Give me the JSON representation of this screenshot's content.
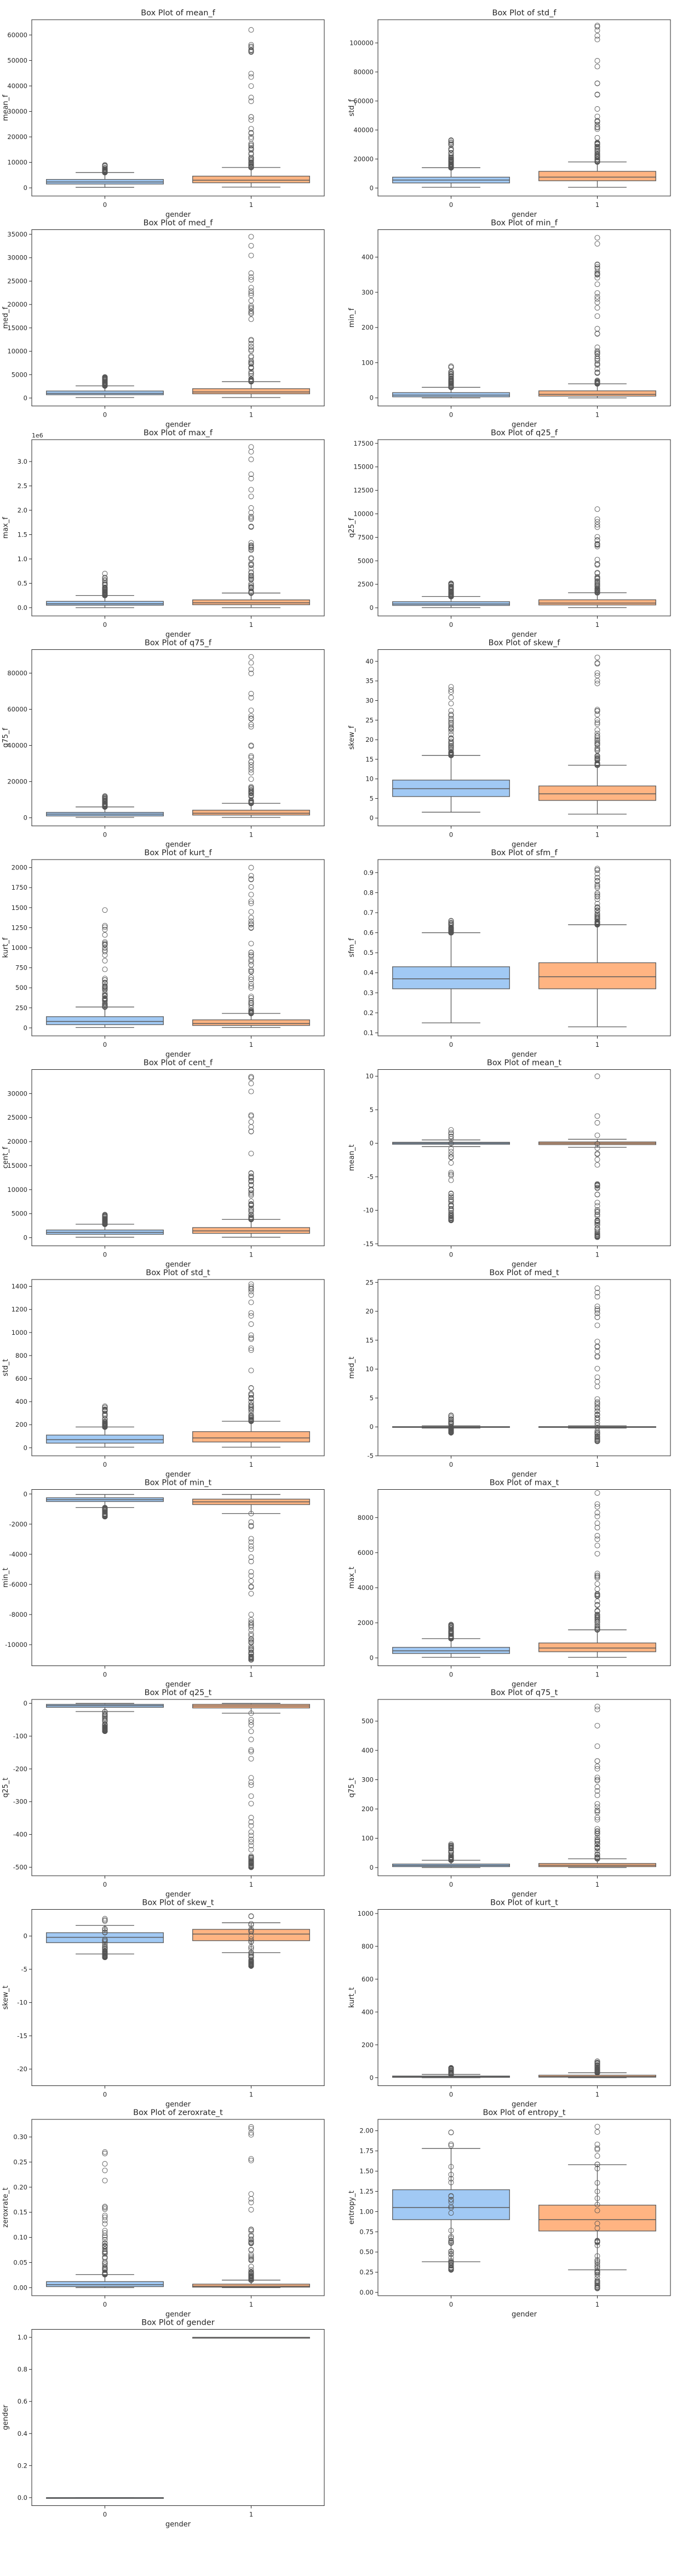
{
  "figure_title": "",
  "chart_data": [
    {
      "type": "box",
      "title": "Box Plot of mean_f",
      "xlabel": "gender",
      "ylabel": "mean_f",
      "ylim": [
        -3200,
        66000
      ],
      "yticks": [
        0,
        10000,
        20000,
        30000,
        40000,
        50000,
        60000
      ],
      "categories": [
        "0",
        "1"
      ],
      "boxes": [
        {
          "q1": 1500,
          "median": 2300,
          "q3": 3300,
          "whisker_low": 200,
          "whisker_high": 6000,
          "outlier_range": [
            6000,
            9000
          ]
        },
        {
          "q1": 2000,
          "median": 3000,
          "q3": 4600,
          "whisker_low": 300,
          "whisker_high": 8000,
          "outlier_range": [
            8000,
            62000
          ]
        }
      ]
    },
    {
      "type": "box",
      "title": "Box Plot of std_f",
      "xlabel": "gender",
      "ylabel": "std_f",
      "ylim": [
        -5500,
        116000
      ],
      "yticks": [
        0,
        20000,
        40000,
        60000,
        80000,
        100000
      ],
      "categories": [
        "0",
        "1"
      ],
      "boxes": [
        {
          "q1": 3500,
          "median": 5500,
          "q3": 7500,
          "whisker_low": 500,
          "whisker_high": 14000,
          "outlier_range": [
            14000,
            33000
          ]
        },
        {
          "q1": 5000,
          "median": 7500,
          "q3": 11500,
          "whisker_low": 500,
          "whisker_high": 18000,
          "outlier_range": [
            18000,
            112000
          ]
        }
      ]
    },
    {
      "type": "box",
      "title": "Box Plot of med_f",
      "xlabel": "gender",
      "ylabel": "med_f",
      "ylim": [
        -1700,
        36000
      ],
      "yticks": [
        0,
        5000,
        10000,
        15000,
        20000,
        25000,
        30000,
        35000
      ],
      "categories": [
        "0",
        "1"
      ],
      "boxes": [
        {
          "q1": 700,
          "median": 1000,
          "q3": 1500,
          "whisker_low": 100,
          "whisker_high": 2600,
          "outlier_range": [
            2600,
            4500
          ]
        },
        {
          "q1": 900,
          "median": 1300,
          "q3": 2000,
          "whisker_low": 100,
          "whisker_high": 3500,
          "outlier_range": [
            3500,
            34500
          ]
        }
      ]
    },
    {
      "type": "box",
      "title": "Box Plot of min_f",
      "xlabel": "gender",
      "ylabel": "min_f",
      "ylim": [
        -23,
        478
      ],
      "yticks": [
        0,
        100,
        200,
        300,
        400
      ],
      "categories": [
        "0",
        "1"
      ],
      "boxes": [
        {
          "q1": 3,
          "median": 8,
          "q3": 15,
          "whisker_low": 0,
          "whisker_high": 30,
          "outlier_range": [
            30,
            90
          ]
        },
        {
          "q1": 5,
          "median": 10,
          "q3": 20,
          "whisker_low": 0,
          "whisker_high": 40,
          "outlier_range": [
            40,
            455
          ]
        }
      ]
    },
    {
      "type": "box",
      "title": "Box Plot of max_f",
      "xlabel": "gender",
      "ylabel": "max_f",
      "ylim": [
        -0.17,
        3.45
      ],
      "yticks": [
        0,
        0.5,
        1.0,
        1.5,
        2.0,
        2.5,
        3.0
      ],
      "ytick_labels": [
        "0.0",
        "0.5",
        "1.0",
        "1.5",
        "2.0",
        "2.5",
        "3.0"
      ],
      "offset_text": "1e6",
      "categories": [
        "0",
        "1"
      ],
      "boxes": [
        {
          "q1": 0.05,
          "median": 0.08,
          "q3": 0.13,
          "whisker_low": 0.0,
          "whisker_high": 0.25,
          "outlier_range": [
            0.25,
            0.7
          ]
        },
        {
          "q1": 0.06,
          "median": 0.1,
          "q3": 0.16,
          "whisker_low": 0.0,
          "whisker_high": 0.3,
          "outlier_range": [
            0.3,
            3.3
          ]
        }
      ]
    },
    {
      "type": "box",
      "title": "Box Plot of q25_f",
      "xlabel": "gender",
      "ylabel": "q25_f",
      "ylim": [
        -870,
        17900
      ],
      "yticks": [
        0,
        2500,
        5000,
        7500,
        10000,
        12500,
        15000,
        17500
      ],
      "categories": [
        "0",
        "1"
      ],
      "boxes": [
        {
          "q1": 250,
          "median": 400,
          "q3": 650,
          "whisker_low": 20,
          "whisker_high": 1200,
          "outlier_range": [
            1200,
            2600
          ]
        },
        {
          "q1": 300,
          "median": 500,
          "q3": 850,
          "whisker_low": 20,
          "whisker_high": 1600,
          "outlier_range": [
            1600,
            10500
          ]
        }
      ]
    },
    {
      "type": "box",
      "title": "Box Plot of q75_f",
      "xlabel": "gender",
      "ylabel": "q75_f",
      "ylim": [
        -4500,
        93000
      ],
      "yticks": [
        0,
        20000,
        40000,
        60000,
        80000
      ],
      "categories": [
        "0",
        "1"
      ],
      "boxes": [
        {
          "q1": 1000,
          "median": 2000,
          "q3": 3000,
          "whisker_low": 200,
          "whisker_high": 6000,
          "outlier_range": [
            6000,
            12000
          ]
        },
        {
          "q1": 1500,
          "median": 2500,
          "q3": 4200,
          "whisker_low": 200,
          "whisker_high": 8000,
          "outlier_range": [
            8000,
            89000
          ]
        }
      ]
    },
    {
      "type": "box",
      "title": "Box Plot of skew_f",
      "xlabel": "gender",
      "ylabel": "skew_f",
      "ylim": [
        -2,
        43
      ],
      "yticks": [
        0,
        5,
        10,
        15,
        20,
        25,
        30,
        35,
        40
      ],
      "categories": [
        "0",
        "1"
      ],
      "boxes": [
        {
          "q1": 5.5,
          "median": 7.5,
          "q3": 9.7,
          "whisker_low": 1.5,
          "whisker_high": 16,
          "outlier_range": [
            16,
            33.5
          ]
        },
        {
          "q1": 4.5,
          "median": 6.2,
          "q3": 8.2,
          "whisker_low": 1.0,
          "whisker_high": 13.5,
          "outlier_range": [
            13.5,
            41
          ]
        }
      ]
    },
    {
      "type": "box",
      "title": "Box Plot of kurt_f",
      "xlabel": "gender",
      "ylabel": "kurt_f",
      "ylim": [
        -100,
        2100
      ],
      "yticks": [
        0,
        250,
        500,
        750,
        1000,
        1250,
        1500,
        1750,
        2000
      ],
      "categories": [
        "0",
        "1"
      ],
      "boxes": [
        {
          "q1": 40,
          "median": 80,
          "q3": 140,
          "whisker_low": 5,
          "whisker_high": 260,
          "outlier_range": [
            260,
            1470
          ]
        },
        {
          "q1": 30,
          "median": 55,
          "q3": 100,
          "whisker_low": 5,
          "whisker_high": 180,
          "outlier_range": [
            180,
            2000
          ]
        }
      ]
    },
    {
      "type": "box",
      "title": "Box Plot of sfm_f",
      "xlabel": "gender",
      "ylabel": "sfm_f",
      "ylim": [
        0.085,
        0.965
      ],
      "yticks": [
        0.1,
        0.2,
        0.3,
        0.4,
        0.5,
        0.6,
        0.7,
        0.8,
        0.9
      ],
      "categories": [
        "0",
        "1"
      ],
      "boxes": [
        {
          "q1": 0.32,
          "median": 0.37,
          "q3": 0.43,
          "whisker_low": 0.15,
          "whisker_high": 0.6,
          "outlier_range": [
            0.6,
            0.66
          ]
        },
        {
          "q1": 0.32,
          "median": 0.38,
          "q3": 0.45,
          "whisker_low": 0.13,
          "whisker_high": 0.64,
          "outlier_range": [
            0.64,
            0.92
          ]
        }
      ]
    },
    {
      "type": "box",
      "title": "Box Plot of cent_f",
      "xlabel": "gender",
      "ylabel": "cent_f",
      "ylim": [
        -1700,
        35000
      ],
      "yticks": [
        0,
        5000,
        10000,
        15000,
        20000,
        25000,
        30000
      ],
      "categories": [
        "0",
        "1"
      ],
      "boxes": [
        {
          "q1": 700,
          "median": 1100,
          "q3": 1600,
          "whisker_low": 100,
          "whisker_high": 2800,
          "outlier_range": [
            2800,
            4800
          ]
        },
        {
          "q1": 900,
          "median": 1400,
          "q3": 2100,
          "whisker_low": 100,
          "whisker_high": 3800,
          "outlier_range": [
            3800,
            33500
          ]
        }
      ]
    },
    {
      "type": "box",
      "title": "Box Plot of mean_t",
      "xlabel": "gender",
      "ylabel": "mean_t",
      "ylim": [
        -15.3,
        11
      ],
      "yticks": [
        -15,
        -10,
        -5,
        0,
        5,
        10
      ],
      "categories": [
        "0",
        "1"
      ],
      "boxes": [
        {
          "q1": -0.15,
          "median": 0,
          "q3": 0.15,
          "whisker_low": -0.5,
          "whisker_high": 0.5,
          "outlier_range": [
            -11.5,
            2
          ]
        },
        {
          "q1": -0.2,
          "median": 0,
          "q3": 0.2,
          "whisker_low": -0.6,
          "whisker_high": 0.6,
          "outlier_range": [
            -14,
            10
          ]
        }
      ]
    },
    {
      "type": "box",
      "title": "Box Plot of std_t",
      "xlabel": "gender",
      "ylabel": "std_t",
      "ylim": [
        -70,
        1460
      ],
      "yticks": [
        0,
        200,
        400,
        600,
        800,
        1000,
        1200,
        1400
      ],
      "categories": [
        "0",
        "1"
      ],
      "boxes": [
        {
          "q1": 40,
          "median": 70,
          "q3": 110,
          "whisker_low": 5,
          "whisker_high": 180,
          "outlier_range": [
            180,
            360
          ]
        },
        {
          "q1": 50,
          "median": 85,
          "q3": 140,
          "whisker_low": 5,
          "whisker_high": 230,
          "outlier_range": [
            230,
            1420
          ]
        }
      ]
    },
    {
      "type": "box",
      "title": "Box Plot of med_t",
      "xlabel": "gender",
      "ylabel": "med_t",
      "ylim": [
        -5,
        25.5
      ],
      "yticks": [
        -5,
        0,
        5,
        10,
        15,
        20,
        25
      ],
      "categories": [
        "0",
        "1"
      ],
      "boxes": [
        {
          "q1": -0.05,
          "median": 0,
          "q3": 0.05,
          "whisker_low": -0.2,
          "whisker_high": 0.2,
          "outlier_range": [
            -1.0,
            2.0
          ]
        },
        {
          "q1": -0.05,
          "median": 0,
          "q3": 0.05,
          "whisker_low": -0.2,
          "whisker_high": 0.2,
          "outlier_range": [
            -2.5,
            24
          ]
        }
      ]
    },
    {
      "type": "box",
      "title": "Box Plot of min_t",
      "xlabel": "gender",
      "ylabel": "min_t",
      "ylim": [
        -11400,
        300
      ],
      "yticks": [
        0,
        -2000,
        -4000,
        -6000,
        -8000,
        -10000
      ],
      "categories": [
        "0",
        "1"
      ],
      "boxes": [
        {
          "q1": -500,
          "median": -380,
          "q3": -250,
          "whisker_low": -900,
          "whisker_high": -30,
          "outlier_range": [
            -1500,
            -900
          ]
        },
        {
          "q1": -700,
          "median": -520,
          "q3": -340,
          "whisker_low": -1300,
          "whisker_high": -30,
          "outlier_range": [
            -11000,
            -1300
          ]
        }
      ]
    },
    {
      "type": "box",
      "title": "Box Plot of max_t",
      "xlabel": "gender",
      "ylabel": "max_t",
      "ylim": [
        -450,
        9600
      ],
      "yticks": [
        0,
        2000,
        4000,
        6000,
        8000
      ],
      "categories": [
        "0",
        "1"
      ],
      "boxes": [
        {
          "q1": 250,
          "median": 400,
          "q3": 600,
          "whisker_low": 30,
          "whisker_high": 1100,
          "outlier_range": [
            1100,
            1900
          ]
        },
        {
          "q1": 350,
          "median": 560,
          "q3": 850,
          "whisker_low": 30,
          "whisker_high": 1600,
          "outlier_range": [
            1600,
            9400
          ]
        }
      ]
    },
    {
      "type": "box",
      "title": "Box Plot of q25_t",
      "xlabel": "gender",
      "ylabel": "q25_t",
      "ylim": [
        -526,
        12
      ],
      "yticks": [
        0,
        -100,
        -200,
        -300,
        -400,
        -500
      ],
      "categories": [
        "0",
        "1"
      ],
      "boxes": [
        {
          "q1": -12,
          "median": -7,
          "q3": -3,
          "whisker_low": -25,
          "whisker_high": 0,
          "outlier_range": [
            -85,
            -25
          ]
        },
        {
          "q1": -14,
          "median": -8,
          "q3": -3,
          "whisker_low": -30,
          "whisker_high": 0,
          "outlier_range": [
            -500,
            -30
          ]
        }
      ]
    },
    {
      "type": "box",
      "title": "Box Plot of q75_t",
      "xlabel": "gender",
      "ylabel": "q75_t",
      "ylim": [
        -28,
        574
      ],
      "yticks": [
        0,
        100,
        200,
        300,
        400,
        500
      ],
      "categories": [
        "0",
        "1"
      ],
      "boxes": [
        {
          "q1": 3,
          "median": 7,
          "q3": 12,
          "whisker_low": 0,
          "whisker_high": 25,
          "outlier_range": [
            25,
            80
          ]
        },
        {
          "q1": 3,
          "median": 8,
          "q3": 14,
          "whisker_low": 0,
          "whisker_high": 30,
          "outlier_range": [
            30,
            550
          ]
        }
      ]
    },
    {
      "type": "box",
      "title": "Box Plot of skew_t",
      "xlabel": "gender",
      "ylabel": "skew_t",
      "ylim": [
        -22.5,
        4
      ],
      "yticks": [
        0,
        -5,
        -10,
        -15,
        -20
      ],
      "categories": [
        "0",
        "1"
      ],
      "boxes": [
        {
          "q1": -1.0,
          "median": -0.2,
          "q3": 0.5,
          "whisker_low": -2.7,
          "whisker_high": 1.6,
          "outlier_range": [
            -3.2,
            2.6
          ]
        },
        {
          "q1": -0.7,
          "median": 0.3,
          "q3": 1.0,
          "whisker_low": -2.5,
          "whisker_high": 2.0,
          "outlier_range": [
            -4.5,
            3.0
          ]
        }
      ]
    },
    {
      "type": "box",
      "title": "Box Plot of kurt_t",
      "xlabel": "gender",
      "ylabel": "kurt_t",
      "ylim": [
        -49,
        1025
      ],
      "yticks": [
        0,
        200,
        400,
        600,
        800,
        1000
      ],
      "categories": [
        "0",
        "1"
      ],
      "boxes": [
        {
          "q1": 2,
          "median": 5,
          "q3": 10,
          "whisker_low": 0,
          "whisker_high": 20,
          "outlier_range": [
            20,
            60
          ]
        },
        {
          "q1": 3,
          "median": 7,
          "q3": 15,
          "whisker_low": 0,
          "whisker_high": 30,
          "outlier_range": [
            30,
            100
          ]
        }
      ]
    },
    {
      "type": "box",
      "title": "Box Plot of zeroxrate_t",
      "xlabel": "gender",
      "ylabel": "zeroxrate_t",
      "ylim": [
        -0.016,
        0.335
      ],
      "yticks": [
        0,
        0.05,
        0.1,
        0.15,
        0.2,
        0.25,
        0.3
      ],
      "ytick_labels": [
        "0.00",
        "0.05",
        "0.10",
        "0.15",
        "0.20",
        "0.25",
        "0.30"
      ],
      "categories": [
        "0",
        "1"
      ],
      "boxes": [
        {
          "q1": 0.002,
          "median": 0.006,
          "q3": 0.012,
          "whisker_low": 0,
          "whisker_high": 0.026,
          "outlier_range": [
            0.026,
            0.27
          ]
        },
        {
          "q1": 0.001,
          "median": 0.003,
          "q3": 0.007,
          "whisker_low": 0,
          "whisker_high": 0.015,
          "outlier_range": [
            0.015,
            0.32
          ]
        }
      ]
    },
    {
      "type": "box",
      "title": "Box Plot of entropy_t",
      "xlabel": "gender",
      "ylabel": "entropy_t",
      "ylim": [
        -0.04,
        2.14
      ],
      "yticks": [
        0,
        0.25,
        0.5,
        0.75,
        1.0,
        1.25,
        1.5,
        1.75,
        2.0
      ],
      "ytick_labels": [
        "0.00",
        "0.25",
        "0.50",
        "0.75",
        "1.00",
        "1.25",
        "1.50",
        "1.75",
        "2.00"
      ],
      "categories": [
        "0",
        "1"
      ],
      "boxes": [
        {
          "q1": 0.9,
          "median": 1.05,
          "q3": 1.27,
          "whisker_low": 0.38,
          "whisker_high": 1.78,
          "outlier_range": [
            0.28,
            1.98
          ]
        },
        {
          "q1": 0.76,
          "median": 0.9,
          "q3": 1.08,
          "whisker_low": 0.28,
          "whisker_high": 1.58,
          "outlier_range": [
            0.05,
            2.05
          ]
        }
      ]
    },
    {
      "type": "box",
      "title": "Box Plot of gender",
      "xlabel": "gender",
      "ylabel": "gender",
      "ylim": [
        -0.05,
        1.05
      ],
      "yticks": [
        0,
        0.2,
        0.4,
        0.6,
        0.8,
        1.0
      ],
      "ytick_labels": [
        "0.0",
        "0.2",
        "0.4",
        "0.6",
        "0.8",
        "1.0"
      ],
      "categories": [
        "0",
        "1"
      ],
      "boxes": [
        {
          "q1": 0,
          "median": 0,
          "q3": 0,
          "whisker_low": 0,
          "whisker_high": 0,
          "outlier_range": null
        },
        {
          "q1": 1,
          "median": 1,
          "q3": 1,
          "whisker_low": 1,
          "whisker_high": 1,
          "outlier_range": null
        }
      ]
    }
  ],
  "colors": {
    "box_fill": [
      "#a1c9f4",
      "#ffb482"
    ],
    "box_edge": "#5a5a5a",
    "outlier_edge": "#555555",
    "axes_edge": "#262626"
  }
}
